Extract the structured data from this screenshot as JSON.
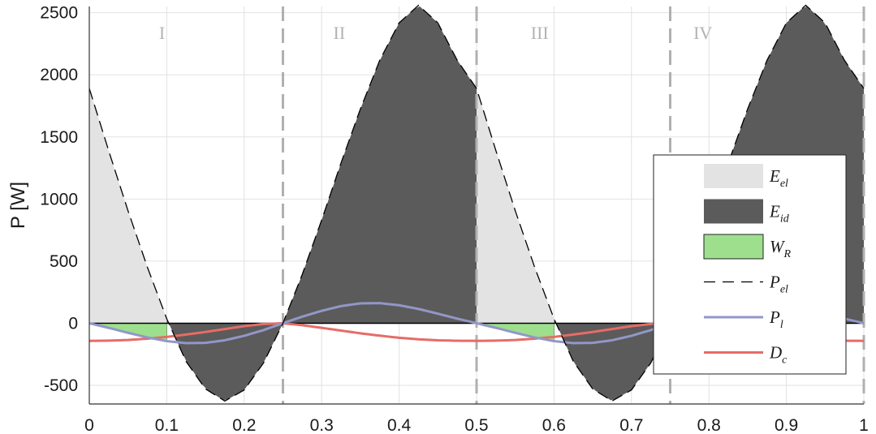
{
  "chart_data": {
    "type": "area",
    "xlabel": "",
    "ylabel": "P [W]",
    "xlim": [
      0,
      1
    ],
    "ylim": [
      -650,
      2550
    ],
    "x_ticks": [
      "0",
      "0.1",
      "0.2",
      "0.3",
      "0.4",
      "0.5",
      "0.6",
      "0.7",
      "0.8",
      "0.9",
      "1"
    ],
    "y_ticks": [
      "-500",
      "0",
      "500",
      "1000",
      "1500",
      "2000",
      "2500"
    ],
    "grid": true,
    "region_boundaries": [
      0.25,
      0.5,
      0.75,
      1.0
    ],
    "region_labels": [
      {
        "text": "I",
        "x": 0.09
      },
      {
        "text": "II",
        "x": 0.315
      },
      {
        "text": "III",
        "x": 0.57
      },
      {
        "text": "IV",
        "x": 0.78
      }
    ],
    "series": [
      {
        "name": "P_el",
        "style": "dashed",
        "color": "#000000",
        "x": [
          0.0,
          0.025,
          0.05,
          0.075,
          0.1,
          0.125,
          0.15,
          0.175,
          0.2,
          0.225,
          0.25,
          0.275,
          0.3,
          0.325,
          0.35,
          0.375,
          0.4,
          0.425,
          0.45,
          0.475,
          0.5,
          0.525,
          0.55,
          0.575,
          0.6,
          0.625,
          0.65,
          0.675,
          0.7,
          0.725,
          0.75,
          0.775,
          0.8,
          0.825,
          0.85,
          0.875,
          0.9,
          0.925,
          0.95,
          0.975,
          1.0
        ],
        "y": [
          1890,
          1389,
          905,
          451,
          36,
          -308,
          -529,
          -626,
          -537,
          -319,
          0,
          394,
          831,
          1290,
          1725,
          2117,
          2418,
          2560,
          2418,
          2117,
          1890,
          1389,
          905,
          451,
          36,
          -308,
          -529,
          -626,
          -537,
          -319,
          0,
          394,
          831,
          1290,
          1725,
          2117,
          2418,
          2560,
          2418,
          2117,
          1890
        ]
      },
      {
        "name": "P_l",
        "style": "solid",
        "color": "#9297c8",
        "x": [
          0.0,
          0.025,
          0.05,
          0.075,
          0.1,
          0.125,
          0.15,
          0.175,
          0.2,
          0.225,
          0.25,
          0.275,
          0.3,
          0.325,
          0.35,
          0.375,
          0.4,
          0.425,
          0.45,
          0.475,
          0.5,
          0.525,
          0.55,
          0.575,
          0.6,
          0.625,
          0.65,
          0.675,
          0.7,
          0.725,
          0.75,
          0.775,
          0.8,
          0.825,
          0.85,
          0.875,
          0.9,
          0.925,
          0.95,
          0.975,
          1.0
        ],
        "y": [
          0,
          -37,
          -77,
          -114,
          -144,
          -160,
          -158,
          -137,
          -101,
          -55,
          0,
          53,
          100,
          138,
          160,
          162,
          145,
          115,
          77,
          37,
          0,
          -37,
          -77,
          -114,
          -144,
          -160,
          -158,
          -137,
          -101,
          -55,
          0,
          53,
          100,
          138,
          160,
          162,
          145,
          115,
          77,
          37,
          0
        ]
      },
      {
        "name": "D_c",
        "style": "solid",
        "color": "#e66c67",
        "x": [
          0.0,
          0.025,
          0.05,
          0.075,
          0.1,
          0.125,
          0.15,
          0.175,
          0.2,
          0.225,
          0.25,
          0.275,
          0.3,
          0.325,
          0.35,
          0.375,
          0.4,
          0.425,
          0.45,
          0.475,
          0.5,
          0.525,
          0.55,
          0.575,
          0.6,
          0.625,
          0.65,
          0.675,
          0.7,
          0.725,
          0.75,
          0.775,
          0.8,
          0.825,
          0.85,
          0.875,
          0.9,
          0.925,
          0.95,
          0.975,
          1.0
        ],
        "y": [
          -142,
          -140,
          -135,
          -124,
          -110,
          -91,
          -70,
          -47,
          -23,
          -6,
          0,
          -16,
          -37,
          -59,
          -81,
          -100,
          -117,
          -129,
          -137,
          -141,
          -142,
          -140,
          -135,
          -124,
          -110,
          -91,
          -70,
          -47,
          -23,
          -6,
          0,
          -16,
          -37,
          -59,
          -81,
          -100,
          -117,
          -129,
          -137,
          -141,
          -142
        ]
      }
    ],
    "areas": [
      {
        "name": "E_el",
        "color": "#e3e3e3",
        "ranges": [
          [
            0.0,
            0.1
          ],
          [
            0.5,
            0.6
          ]
        ],
        "between": [
          "P_el",
          "zero"
        ]
      },
      {
        "name": "E_id",
        "color": "#5b5b5b",
        "ranges": [
          [
            0.1,
            0.5
          ],
          [
            0.6,
            1.0
          ]
        ],
        "between": [
          "P_el",
          "zero"
        ]
      },
      {
        "name": "W_R",
        "color": "#9ddf8d",
        "ranges": [
          [
            0.0,
            0.1
          ],
          [
            0.5,
            0.6
          ]
        ],
        "between": [
          "zero",
          "P_l"
        ]
      }
    ],
    "legend": {
      "position": "right",
      "entries": [
        {
          "main": "E",
          "sub": "el",
          "kind": "patch",
          "color": "#e3e3e3"
        },
        {
          "main": "E",
          "sub": "id",
          "kind": "patch",
          "color": "#5b5b5b"
        },
        {
          "main": "W",
          "sub": "R",
          "kind": "patch",
          "color": "#9ddf8d"
        },
        {
          "main": "P",
          "sub": "el",
          "kind": "dash",
          "color": "#000000"
        },
        {
          "main": "P",
          "sub": "l",
          "kind": "line",
          "color": "#9297c8"
        },
        {
          "main": "D",
          "sub": "c",
          "kind": "line",
          "color": "#e66c67"
        }
      ]
    }
  }
}
